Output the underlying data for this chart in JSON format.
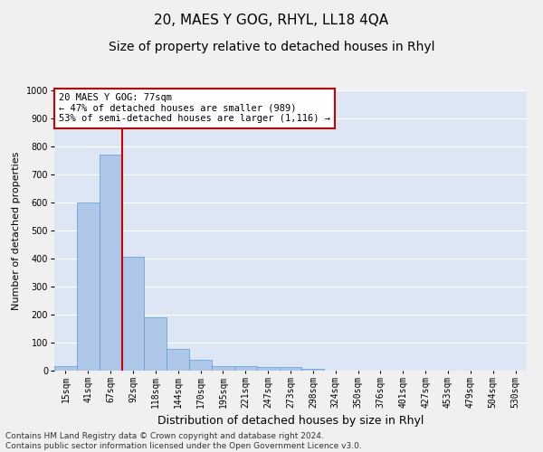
{
  "title": "20, MAES Y GOG, RHYL, LL18 4QA",
  "subtitle": "Size of property relative to detached houses in Rhyl",
  "xlabel": "Distribution of detached houses by size in Rhyl",
  "ylabel": "Number of detached properties",
  "footer_line1": "Contains HM Land Registry data © Crown copyright and database right 2024.",
  "footer_line2": "Contains public sector information licensed under the Open Government Licence v3.0.",
  "bar_labels": [
    "15sqm",
    "41sqm",
    "67sqm",
    "92sqm",
    "118sqm",
    "144sqm",
    "170sqm",
    "195sqm",
    "221sqm",
    "247sqm",
    "273sqm",
    "298sqm",
    "324sqm",
    "350sqm",
    "376sqm",
    "401sqm",
    "427sqm",
    "453sqm",
    "479sqm",
    "504sqm",
    "530sqm"
  ],
  "bar_values": [
    15,
    600,
    770,
    405,
    190,
    77,
    38,
    17,
    16,
    12,
    13,
    8,
    0,
    0,
    0,
    0,
    0,
    0,
    0,
    0,
    0
  ],
  "bar_color": "#aec6e8",
  "bar_edge_color": "#5b9bd5",
  "figure_bg": "#f0f0f0",
  "axes_bg": "#dce6f5",
  "grid_color": "#ffffff",
  "ylim": [
    0,
    1000
  ],
  "yticks": [
    0,
    100,
    200,
    300,
    400,
    500,
    600,
    700,
    800,
    900,
    1000
  ],
  "vline_color": "#cc0000",
  "annotation_text": "20 MAES Y GOG: 77sqm\n← 47% of detached houses are smaller (989)\n53% of semi-detached houses are larger (1,116) →",
  "annotation_box_color": "#cc0000",
  "title_fontsize": 11,
  "subtitle_fontsize": 10,
  "xlabel_fontsize": 9,
  "ylabel_fontsize": 8,
  "tick_fontsize": 7,
  "annotation_fontsize": 7.5,
  "footer_fontsize": 6.5
}
